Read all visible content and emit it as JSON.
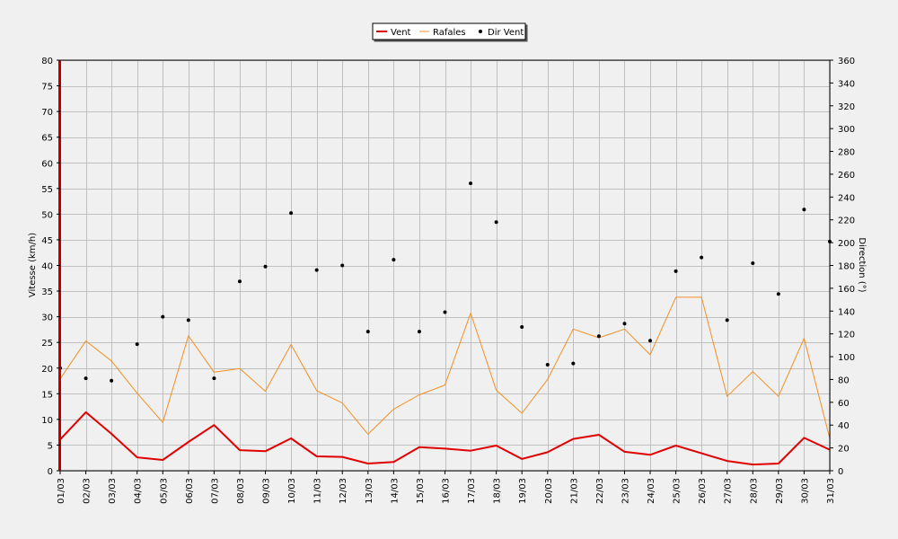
{
  "chart_data": {
    "type": "line",
    "categories": [
      "01/03",
      "02/03",
      "03/03",
      "04/03",
      "05/03",
      "06/03",
      "07/03",
      "08/03",
      "09/03",
      "10/03",
      "11/03",
      "12/03",
      "13/03",
      "14/03",
      "15/03",
      "16/03",
      "17/03",
      "18/03",
      "19/03",
      "20/03",
      "21/03",
      "22/03",
      "23/03",
      "24/03",
      "25/03",
      "26/03",
      "27/03",
      "28/03",
      "29/03",
      "30/03",
      "31/03"
    ],
    "ylabel": "Vitesse (km/h)",
    "y2label": "Direction (°)",
    "ylim": [
      0,
      80
    ],
    "y2lim": [
      0,
      360
    ],
    "yticks": [
      0,
      5,
      10,
      15,
      20,
      25,
      30,
      35,
      40,
      45,
      50,
      55,
      60,
      65,
      70,
      75,
      80
    ],
    "y2ticks": [
      0,
      20,
      40,
      60,
      80,
      100,
      120,
      140,
      160,
      180,
      200,
      220,
      240,
      260,
      280,
      300,
      320,
      340,
      360
    ],
    "grid": true,
    "legend_position": "top-center",
    "series": [
      {
        "name": "Vent",
        "axis": "left",
        "style": "line",
        "color": "#e00000",
        "values": [
          6.1,
          11.4,
          7.2,
          2.6,
          2.1,
          5.6,
          8.9,
          4.0,
          3.8,
          6.3,
          2.8,
          2.7,
          1.4,
          1.7,
          4.6,
          4.3,
          3.9,
          4.9,
          2.3,
          3.6,
          6.2,
          7.0,
          3.7,
          3.1,
          4.9,
          3.4,
          1.9,
          1.2,
          1.4,
          6.4,
          4.1
        ]
      },
      {
        "name": "Rafales",
        "axis": "left",
        "style": "line",
        "color": "#f39020",
        "values": [
          17.9,
          25.3,
          21.4,
          15.1,
          9.4,
          26.3,
          19.2,
          19.9,
          15.5,
          24.6,
          15.6,
          13.2,
          7.1,
          12.0,
          14.8,
          16.7,
          30.7,
          15.7,
          11.2,
          17.8,
          27.6,
          25.9,
          27.6,
          22.6,
          33.8,
          33.8,
          14.5,
          19.3,
          14.5,
          25.8,
          6.3
        ]
      },
      {
        "name": "Dir Vent",
        "axis": "right",
        "style": "points",
        "color": "#000000",
        "values": [
          90,
          81,
          79,
          111,
          135,
          132,
          81,
          166,
          179,
          226,
          176,
          180,
          122,
          185,
          122,
          139,
          252,
          218,
          126,
          93,
          94,
          118,
          129,
          114,
          175,
          187,
          132,
          182,
          155,
          229,
          201
        ]
      }
    ]
  }
}
